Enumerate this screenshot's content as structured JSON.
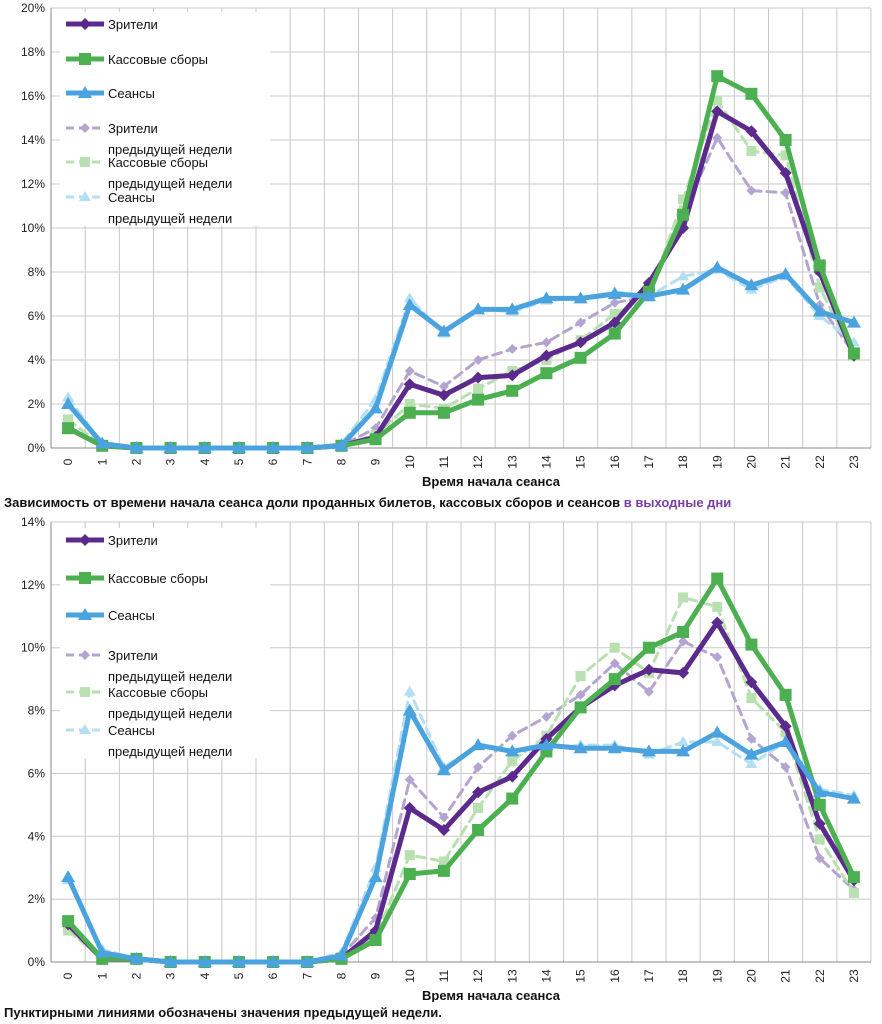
{
  "captions": {
    "top_main": "Зависимость от времени начала сеанса доли проданных билетов, кассовых сборов и сеансов ",
    "top_accent": "в выходные дни",
    "bottom": "Пунктирными линиями обозначены значения предыдущей недели."
  },
  "colors": {
    "viewers": "#5b2a8c",
    "boxoffice": "#4caf50",
    "sessions": "#4aa3df",
    "viewers_prev": "#b3a4d0",
    "boxoffice_prev": "#b8e0b0",
    "sessions_prev": "#b3dff2",
    "accent_text": "#7a3fa0"
  },
  "chart_data": [
    {
      "type": "line",
      "title": "",
      "xlabel": "Время начала сеанса",
      "ylabel": "",
      "categories": [
        "0",
        "1",
        "2",
        "3",
        "4",
        "5",
        "6",
        "7",
        "8",
        "9",
        "10",
        "11",
        "12",
        "13",
        "14",
        "15",
        "16",
        "17",
        "18",
        "19",
        "20",
        "21",
        "22",
        "23"
      ],
      "ylim": [
        0,
        20
      ],
      "yticks": [
        "0%",
        "2%",
        "4%",
        "6%",
        "8%",
        "10%",
        "12%",
        "14%",
        "16%",
        "18%",
        "20%"
      ],
      "legend_position": "top-left",
      "series": [
        {
          "key": "viewers",
          "name": "Зрители",
          "style": "solid",
          "marker": "diamond",
          "values": [
            0.9,
            0.1,
            0,
            0,
            0,
            0,
            0,
            0,
            0.1,
            0.5,
            2.9,
            2.4,
            3.2,
            3.3,
            4.2,
            4.8,
            5.7,
            7.5,
            10.0,
            15.3,
            14.4,
            12.5,
            8.0,
            4.2
          ]
        },
        {
          "key": "boxoffice",
          "name": "Кассовые сборы",
          "style": "solid",
          "marker": "square",
          "values": [
            0.9,
            0.1,
            0,
            0,
            0,
            0,
            0,
            0,
            0.1,
            0.4,
            1.6,
            1.6,
            2.2,
            2.6,
            3.4,
            4.1,
            5.2,
            7.1,
            10.6,
            16.9,
            16.1,
            14.0,
            8.3,
            4.3
          ]
        },
        {
          "key": "sessions",
          "name": "Сеансы",
          "style": "solid",
          "marker": "triangle",
          "values": [
            2.0,
            0.2,
            0,
            0,
            0,
            0,
            0,
            0,
            0.1,
            1.8,
            6.5,
            5.3,
            6.3,
            6.3,
            6.8,
            6.8,
            7.0,
            6.9,
            7.2,
            8.2,
            7.4,
            7.9,
            6.2,
            5.7
          ]
        },
        {
          "key": "viewers_prev",
          "name": "Зрители",
          "name2": "предыдущей недели",
          "style": "dashed",
          "marker": "diamond",
          "values": [
            1.0,
            0.1,
            0,
            0,
            0,
            0,
            0,
            0,
            0.1,
            0.9,
            3.5,
            2.8,
            4.0,
            4.5,
            4.8,
            5.7,
            6.6,
            6.9,
            10.6,
            14.1,
            11.7,
            11.6,
            6.5,
            4.3
          ]
        },
        {
          "key": "boxoffice_prev",
          "name": "Кассовые сборы",
          "name2": "предыдущей недели",
          "style": "dashed",
          "marker": "square",
          "values": [
            1.3,
            0.1,
            0,
            0,
            0,
            0,
            0,
            0,
            0.1,
            0.6,
            2.0,
            1.8,
            2.7,
            3.5,
            4.0,
            4.9,
            6.1,
            6.9,
            11.3,
            15.8,
            13.5,
            13.3,
            7.3,
            4.2
          ]
        },
        {
          "key": "sessions_prev",
          "name": "Сеансы",
          "name2": "предыдущей недели",
          "style": "dashed",
          "marker": "triangle",
          "values": [
            2.3,
            0.2,
            0,
            0,
            0,
            0,
            0,
            0,
            0.2,
            2.2,
            6.8,
            5.2,
            6.3,
            6.2,
            6.7,
            6.8,
            7.1,
            6.9,
            7.8,
            8.1,
            7.2,
            7.8,
            6.0,
            4.8
          ]
        }
      ]
    },
    {
      "type": "line",
      "title": "",
      "xlabel": "Время начала сеанса",
      "ylabel": "",
      "categories": [
        "0",
        "1",
        "2",
        "3",
        "4",
        "5",
        "6",
        "7",
        "8",
        "9",
        "10",
        "11",
        "12",
        "13",
        "14",
        "15",
        "16",
        "17",
        "18",
        "19",
        "20",
        "21",
        "22",
        "23"
      ],
      "ylim": [
        0,
        14
      ],
      "yticks": [
        "0%",
        "2%",
        "4%",
        "6%",
        "8%",
        "10%",
        "12%",
        "14%"
      ],
      "legend_position": "top-left",
      "series": [
        {
          "key": "viewers",
          "name": "Зрители",
          "style": "solid",
          "marker": "diamond",
          "values": [
            1.2,
            0.1,
            0.1,
            0,
            0,
            0,
            0,
            0,
            0.1,
            1.0,
            4.9,
            4.2,
            5.4,
            5.9,
            7.1,
            8.1,
            8.8,
            9.3,
            9.2,
            10.8,
            8.9,
            7.5,
            4.4,
            2.6
          ]
        },
        {
          "key": "boxoffice",
          "name": "Кассовые сборы",
          "style": "solid",
          "marker": "square",
          "values": [
            1.3,
            0.1,
            0.1,
            0,
            0,
            0,
            0,
            0,
            0.1,
            0.7,
            2.8,
            2.9,
            4.2,
            5.2,
            6.7,
            8.1,
            9.0,
            10.0,
            10.5,
            12.2,
            10.1,
            8.5,
            5.0,
            2.7
          ]
        },
        {
          "key": "sessions",
          "name": "Сеансы",
          "style": "solid",
          "marker": "triangle",
          "values": [
            2.7,
            0.3,
            0.1,
            0,
            0,
            0,
            0,
            0,
            0.2,
            2.7,
            8.0,
            6.1,
            6.9,
            6.7,
            6.9,
            6.8,
            6.8,
            6.7,
            6.7,
            7.3,
            6.6,
            7.0,
            5.4,
            5.2
          ]
        },
        {
          "key": "viewers_prev",
          "name": "Зрители",
          "name2": "предыдущей недели",
          "style": "dashed",
          "marker": "diamond",
          "values": [
            1.1,
            0.1,
            0.1,
            0,
            0,
            0,
            0,
            0,
            0.2,
            1.4,
            5.8,
            4.6,
            6.2,
            7.2,
            7.8,
            8.5,
            9.5,
            8.6,
            10.2,
            9.7,
            7.1,
            6.2,
            3.3,
            2.3
          ]
        },
        {
          "key": "boxoffice_prev",
          "name": "Кассовые сборы",
          "name2": "предыдущей недели",
          "style": "dashed",
          "marker": "square",
          "values": [
            1.0,
            0.1,
            0.1,
            0,
            0,
            0,
            0,
            0,
            0.1,
            0.8,
            3.4,
            3.2,
            4.9,
            6.4,
            7.2,
            9.1,
            10.0,
            9.2,
            11.6,
            11.3,
            8.4,
            7.3,
            3.9,
            2.2
          ]
        },
        {
          "key": "sessions_prev",
          "name": "Сеансы",
          "name2": "предыдущей недели",
          "style": "dashed",
          "marker": "triangle",
          "values": [
            2.6,
            0.4,
            0.1,
            0,
            0,
            0,
            0,
            0,
            0.3,
            3.0,
            8.6,
            6.2,
            6.9,
            6.7,
            6.8,
            6.9,
            6.9,
            6.6,
            7.0,
            7.0,
            6.3,
            7.0,
            5.5,
            5.3
          ]
        }
      ]
    }
  ]
}
